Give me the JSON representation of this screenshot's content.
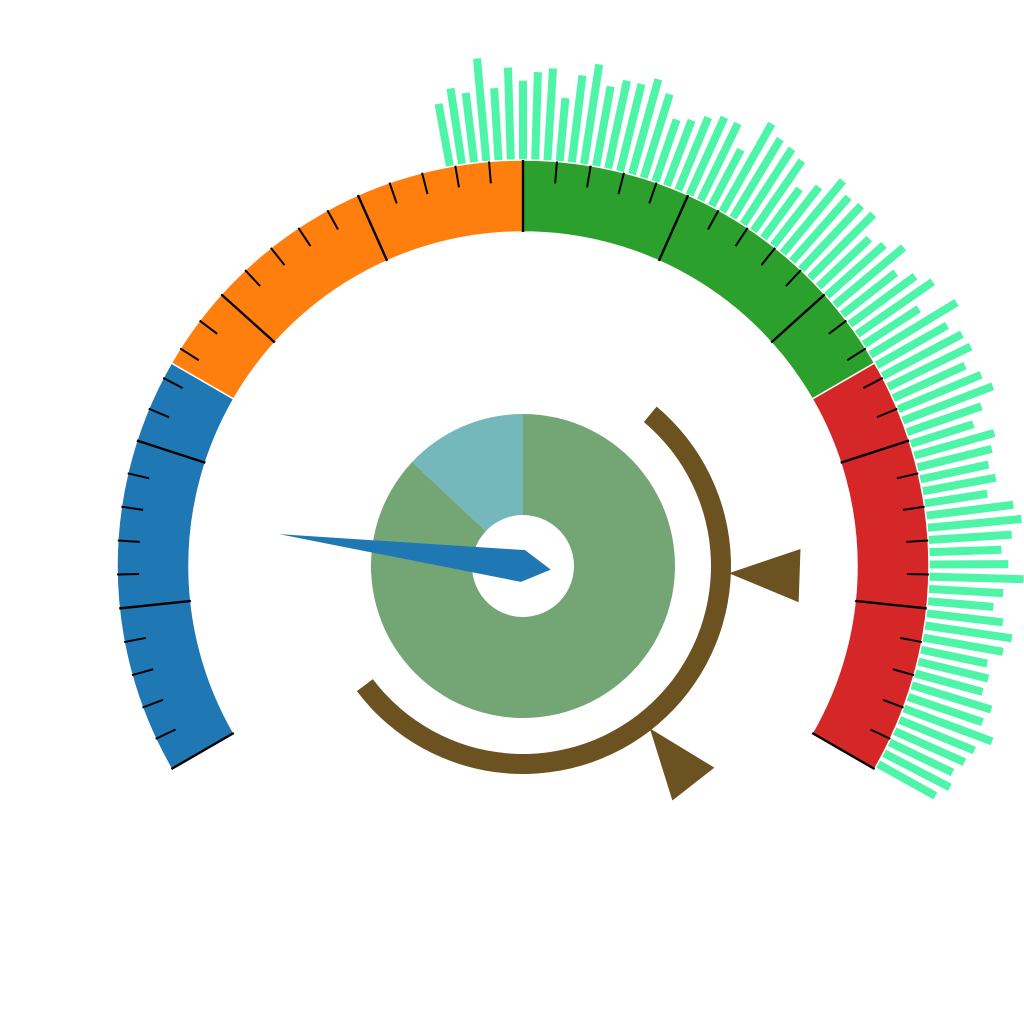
{
  "chart_data": {
    "type": "gauge",
    "title": "",
    "range": [
      0,
      100
    ],
    "start_angle_deg": -120,
    "end_angle_deg": 120,
    "bands": [
      {
        "from": 0,
        "to": 25,
        "color": "#1f77b4"
      },
      {
        "from": 25,
        "to": 50,
        "color": "#ff7f0e"
      },
      {
        "from": 50,
        "to": 75,
        "color": "#2ca02c"
      },
      {
        "from": 75,
        "to": 100,
        "color": "#d62728"
      }
    ],
    "major_tick_step": 10,
    "minor_ticks_per_major": 4,
    "needle": {
      "value": 15.6,
      "color": "#1f77b4"
    },
    "histogram": {
      "color": "#4ef4a8",
      "range": [
        44,
        108
      ],
      "values": [
        7,
        3,
        2,
        18,
        20,
        10,
        5,
        9,
        12,
        19,
        27,
        4,
        28,
        11,
        21,
        22,
        24,
        3,
        21,
        26,
        20,
        17,
        24,
        23,
        21,
        20,
        18,
        7,
        9,
        12,
        16,
        14,
        20,
        19,
        16,
        8,
        12,
        20,
        24,
        6,
        22,
        12,
        26,
        24,
        23,
        17,
        15,
        12,
        18,
        28,
        9,
        19,
        19,
        16,
        12,
        12,
        23,
        15,
        13,
        7,
        17,
        26,
        29,
        9,
        15,
        12,
        27,
        13,
        22,
        16,
        20,
        22,
        9,
        20,
        26,
        17,
        21,
        21,
        25,
        20,
        10,
        12,
        16,
        19,
        19,
        9,
        26,
        22,
        21,
        19,
        8,
        14,
        23,
        19,
        20,
        21,
        12,
        15,
        21,
        11,
        17,
        22,
        10,
        26,
        17,
        21,
        22,
        16,
        21,
        24,
        16,
        10,
        18,
        15,
        12,
        14,
        9,
        20,
        23,
        18,
        13,
        16,
        23,
        14,
        10,
        15,
        20,
        17,
        11,
        13,
        12,
        18,
        16,
        23,
        17,
        15,
        12,
        14,
        10
      ]
    },
    "inner_donut": {
      "slices": [
        {
          "value": 0.87,
          "color": "#74a574"
        },
        {
          "value": 0.13,
          "color": "#74b8bc"
        }
      ]
    },
    "bracket": {
      "color": "#6b5220",
      "from_deg": 40,
      "to_deg": 233,
      "markers_deg": [
        92,
        142
      ]
    }
  }
}
